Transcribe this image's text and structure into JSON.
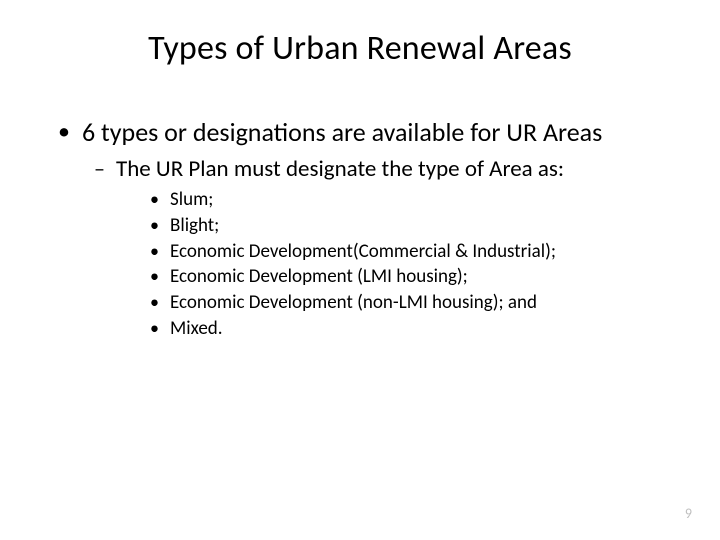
{
  "title": "Types of Urban Renewal Areas",
  "bullet1": "6 types or designations are available for UR Areas",
  "sub1": "The UR Plan must designate the type of Area as:",
  "items": {
    "i0": "Slum;",
    "i1": "Blight;",
    "i2": "Economic Development(Commercial & Industrial);",
    "i3": "Economic Development (LMI housing);",
    "i4": "Economic Development (non-LMI housing); and",
    "i5": "Mixed."
  },
  "pageNumber": "9",
  "colors": {
    "text": "#000000",
    "pageNumber": "#bfbfbf",
    "background": "#ffffff"
  },
  "fonts": {
    "title_size_pt": 34,
    "level1_size_pt": 26,
    "level2_size_pt": 23,
    "level3_size_pt": 19,
    "page_number_size_pt": 14,
    "family": "Calibri"
  }
}
